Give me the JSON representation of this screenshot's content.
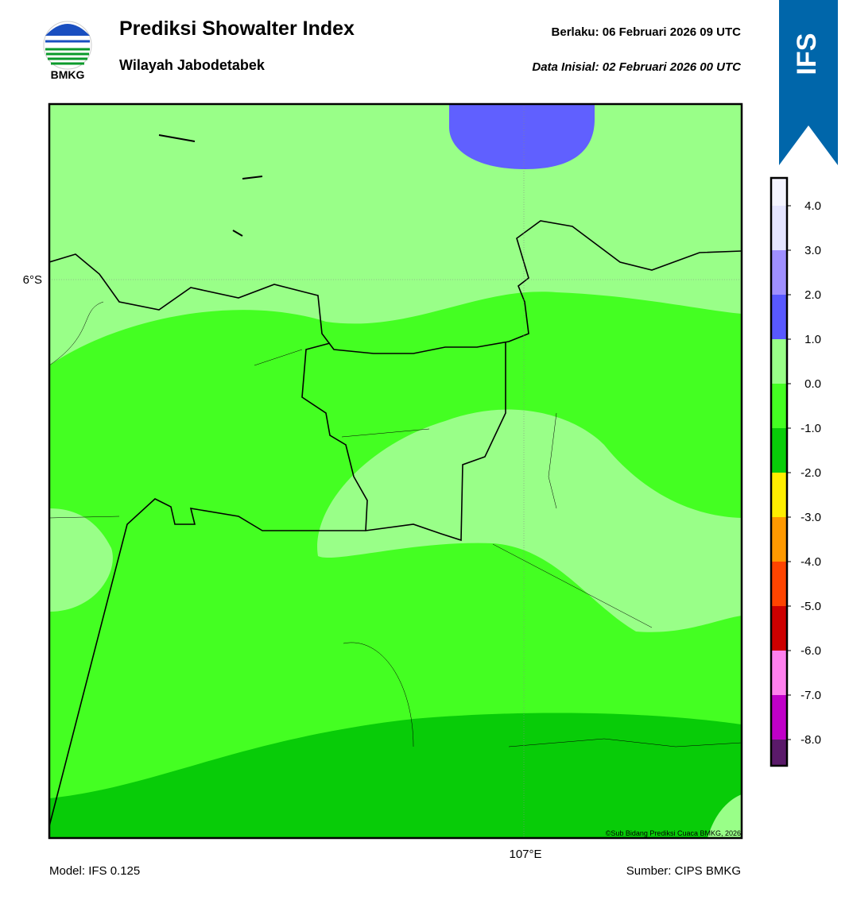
{
  "header": {
    "title": "Prediksi Showalter Index",
    "subtitle": "Wilayah Jabodetabek",
    "valid": "Berlaku:  06 Februari 2026 09 UTC",
    "init": "Data Inisial:  02 Februari 2026 00 UTC",
    "logo": "BMKG",
    "badge": "IFS"
  },
  "map": {
    "lat_label": "6°S",
    "lon_label": "107°E",
    "credit": "©Sub Bidang Prediksi Cuaca BMKG, 2026"
  },
  "colorbar": {
    "labels": [
      "4.0",
      "3.0",
      "2.0",
      "1.0",
      "0.0",
      "-1.0",
      "-2.0",
      "-3.0",
      "-4.0",
      "-5.0",
      "-6.0",
      "-7.0",
      "-8.0"
    ],
    "colors": [
      "#f4f4ff",
      "#e4e4ff",
      "#9f8fff",
      "#5858ff",
      "#99ff88",
      "#44ff22",
      "#08cc08",
      "#ffee00",
      "#ff9900",
      "#ff4400",
      "#cc0000",
      "#ff80ee",
      "#c000c8",
      "#5a1a6a"
    ]
  },
  "footer": {
    "model": "Model: IFS 0.125",
    "source": "Sumber: CIPS BMKG"
  }
}
